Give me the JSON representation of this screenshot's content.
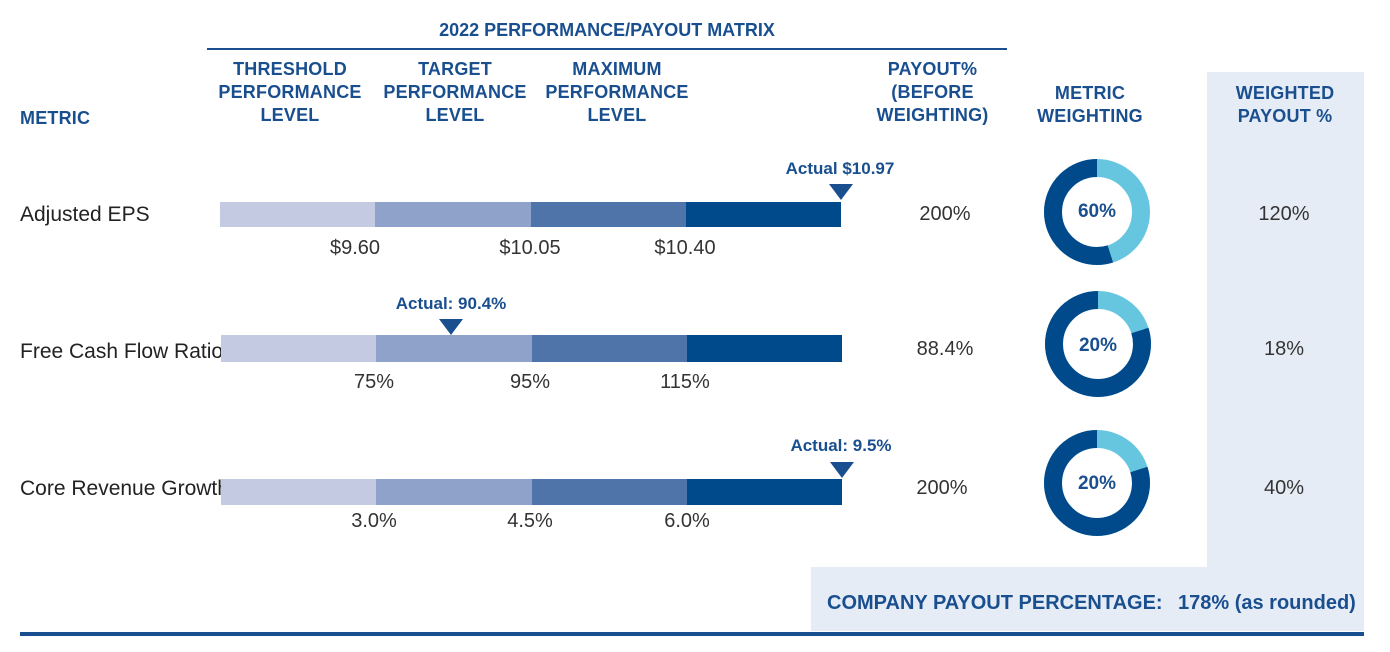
{
  "colors": {
    "navy": "#1a4f8f",
    "seg1": "#c3cae2",
    "seg2": "#8fa3ca",
    "seg3": "#4f74a9",
    "seg4": "#004a8c",
    "donut_dark": "#004a8c",
    "donut_light": "#66c6e0",
    "weighted_bg": "#e6ecf5"
  },
  "header": {
    "title": "2022 PERFORMANCE/PAYOUT MATRIX",
    "metric": "METRIC",
    "threshold": "THRESHOLD\nPERFORMANCE\nLEVEL",
    "target": "TARGET\nPERFORMANCE\nLEVEL",
    "maximum": "MAXIMUM\nPERFORMANCE\nLEVEL",
    "payout": "PAYOUT%\n(BEFORE\nWEIGHTING)",
    "weighting": "METRIC\nWEIGHTING",
    "weighted_payout": "WEIGHTED\nPAYOUT %"
  },
  "chart_data": {
    "type": "bar",
    "title": "2022 PERFORMANCE/PAYOUT MATRIX",
    "rows": [
      {
        "metric": "Adjusted EPS",
        "ticks": [
          "$9.60",
          "$10.05",
          "$10.40"
        ],
        "actual_label": "Actual $10.97",
        "marker_position_pct": 100,
        "payout": "200%",
        "weighting": "60%",
        "weighting_value": 60,
        "weighted_payout": "120%"
      },
      {
        "metric": "Free Cash Flow Ratio",
        "ticks": [
          "75%",
          "95%",
          "115%"
        ],
        "actual_label": "Actual: 90.4%",
        "marker_position_pct": 37,
        "payout": "88.4%",
        "weighting": "20%",
        "weighting_value": 20,
        "weighted_payout": "18%"
      },
      {
        "metric": "Core Revenue Growth",
        "ticks": [
          "3.0%",
          "4.5%",
          "6.0%"
        ],
        "actual_label": "Actual: 9.5%",
        "marker_position_pct": 100,
        "payout": "200%",
        "weighting": "20%",
        "weighting_value": 20,
        "weighted_payout": "40%"
      }
    ]
  },
  "company": {
    "label": "COMPANY PAYOUT PERCENTAGE:",
    "value": "178% (as rounded)"
  }
}
